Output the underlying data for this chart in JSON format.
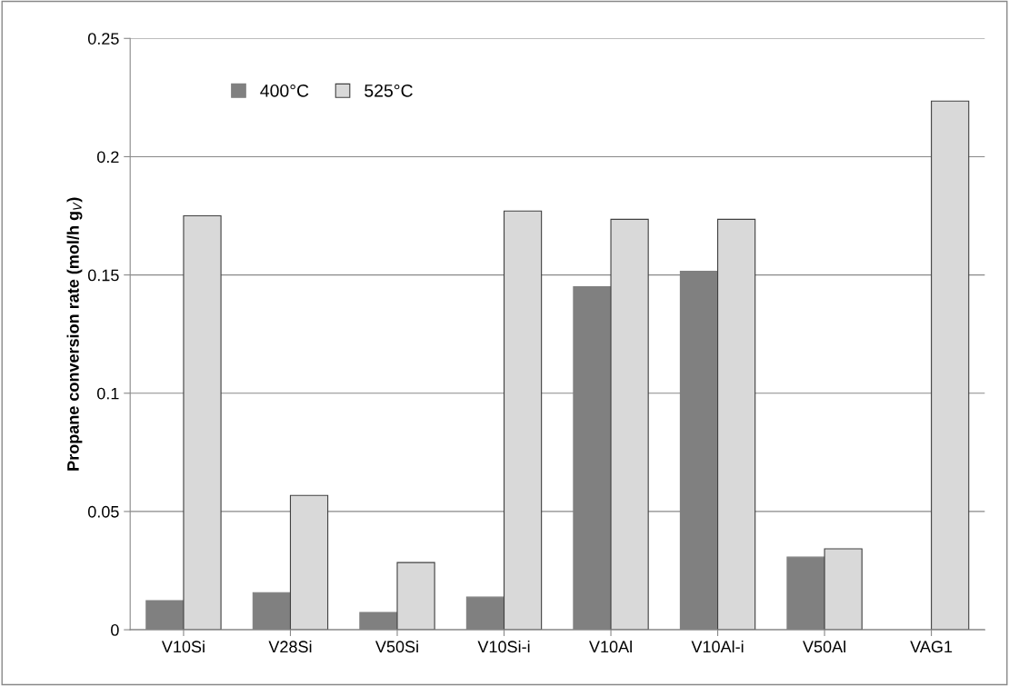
{
  "chart_data": {
    "type": "bar",
    "ylabel": "Propane conversion rate (mol/h g$_{V}$)",
    "categories": [
      "V10Si",
      "V28Si",
      "V50Si",
      "V10Si-i",
      "V10Al",
      "V10Al-i",
      "V50Al",
      "VAG1"
    ],
    "series": [
      {
        "name": "400°C",
        "color": "#808080",
        "values": [
          0.0123,
          0.0157,
          0.0073,
          0.0138,
          0.145,
          0.1516,
          0.0307,
          null
        ]
      },
      {
        "name": "525°C",
        "color": "#d9d9d9",
        "values": [
          0.175,
          0.0568,
          0.0284,
          0.177,
          0.1735,
          0.1735,
          0.0342,
          0.2235
        ]
      }
    ],
    "ylim": [
      0,
      0.25
    ],
    "yticks": [
      {
        "value": 0,
        "label": "0"
      },
      0.05,
      0.1,
      0.15,
      0.2,
      0.25
    ],
    "grid": "y",
    "legend": "top left"
  }
}
